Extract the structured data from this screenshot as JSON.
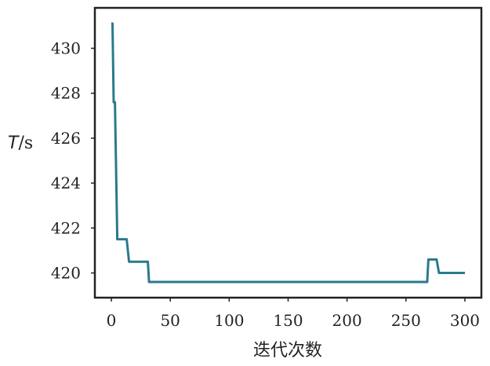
{
  "chart_data": {
    "type": "line",
    "title": "",
    "xlabel": "迭代次数",
    "ylabel_var": "T",
    "ylabel_unit": "/s",
    "xlim": [
      -14,
      314
    ],
    "ylim": [
      418.9,
      431.8
    ],
    "xticks": [
      "0",
      "50",
      "100",
      "150",
      "200",
      "250",
      "300"
    ],
    "yticks": [
      "420",
      "422",
      "424",
      "426",
      "428",
      "430"
    ],
    "grid": false,
    "series": [
      {
        "color": "#2a7a8c",
        "points": [
          [
            0,
            431.1
          ],
          [
            1,
            431.1
          ],
          [
            2,
            427.6
          ],
          [
            3,
            427.6
          ],
          [
            5,
            421.5
          ],
          [
            13,
            421.5
          ],
          [
            15,
            420.5
          ],
          [
            31,
            420.5
          ],
          [
            32,
            419.6
          ],
          [
            268,
            419.6
          ],
          [
            269,
            420.6
          ],
          [
            276,
            420.6
          ],
          [
            278,
            420.0
          ],
          [
            300,
            420.0
          ]
        ]
      }
    ]
  }
}
